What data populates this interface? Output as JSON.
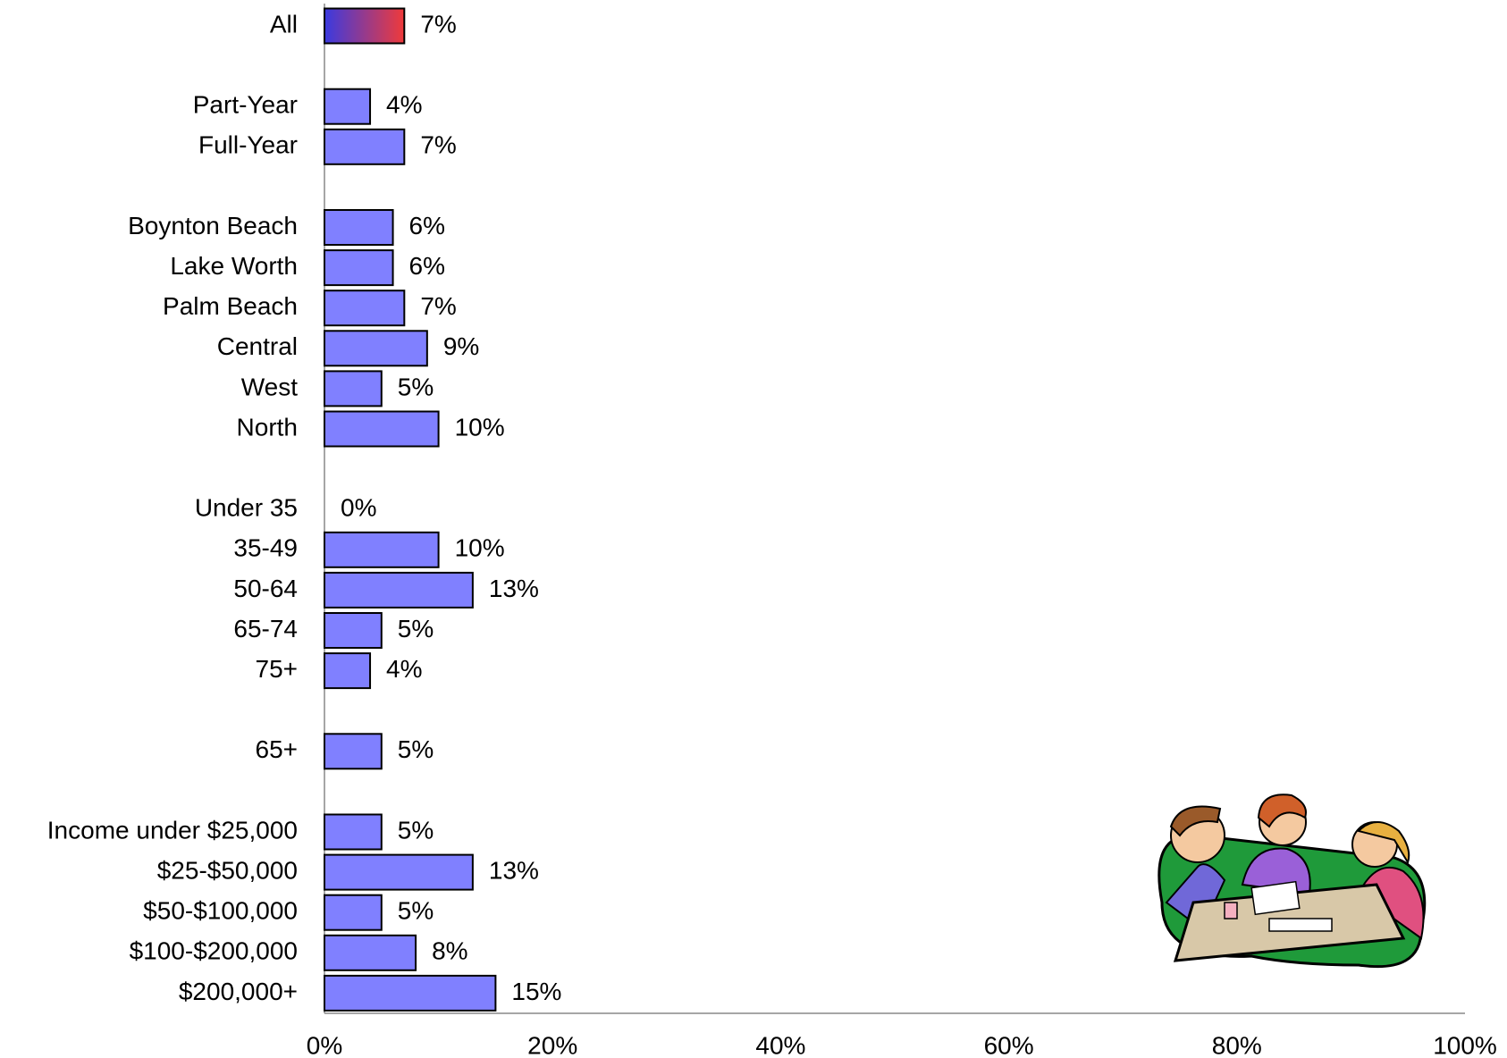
{
  "chart_data": {
    "type": "hbar",
    "categories": [
      "All",
      null,
      "Part-Year",
      "Full-Year",
      null,
      "Boynton Beach",
      "Lake Worth",
      "Palm Beach",
      "Central",
      "West",
      "North",
      null,
      "Under 35",
      "35-49",
      "50-64",
      "65-74",
      "75+",
      null,
      "65+",
      null,
      "Income under $25,000",
      "$25-$50,000",
      "$50-$100,000",
      "$100-$200,000",
      "$200,000+"
    ],
    "values": [
      7,
      null,
      4,
      7,
      null,
      6,
      6,
      7,
      9,
      5,
      10,
      null,
      0,
      10,
      13,
      5,
      4,
      null,
      5,
      null,
      5,
      13,
      5,
      8,
      15
    ],
    "value_labels": [
      "7%",
      null,
      "4%",
      "7%",
      null,
      "6%",
      "6%",
      "7%",
      "9%",
      "5%",
      "10%",
      null,
      "0%",
      "10%",
      "13%",
      "5%",
      "4%",
      null,
      "5%",
      null,
      "5%",
      "13%",
      "5%",
      "8%",
      "15%"
    ],
    "color": "#8080ff",
    "first_bar_gradient": [
      "#3a3ae0",
      "#f03a3a"
    ],
    "xlim": [
      0,
      100
    ],
    "xticks": [
      {
        "value": 0,
        "label": "0%"
      },
      {
        "value": 20,
        "label": "20%"
      },
      {
        "value": 40,
        "label": "40%"
      },
      {
        "value": 60,
        "label": "60%"
      },
      {
        "value": 80,
        "label": "80%"
      },
      {
        "value": 100,
        "label": "100%"
      }
    ],
    "grid": false
  }
}
